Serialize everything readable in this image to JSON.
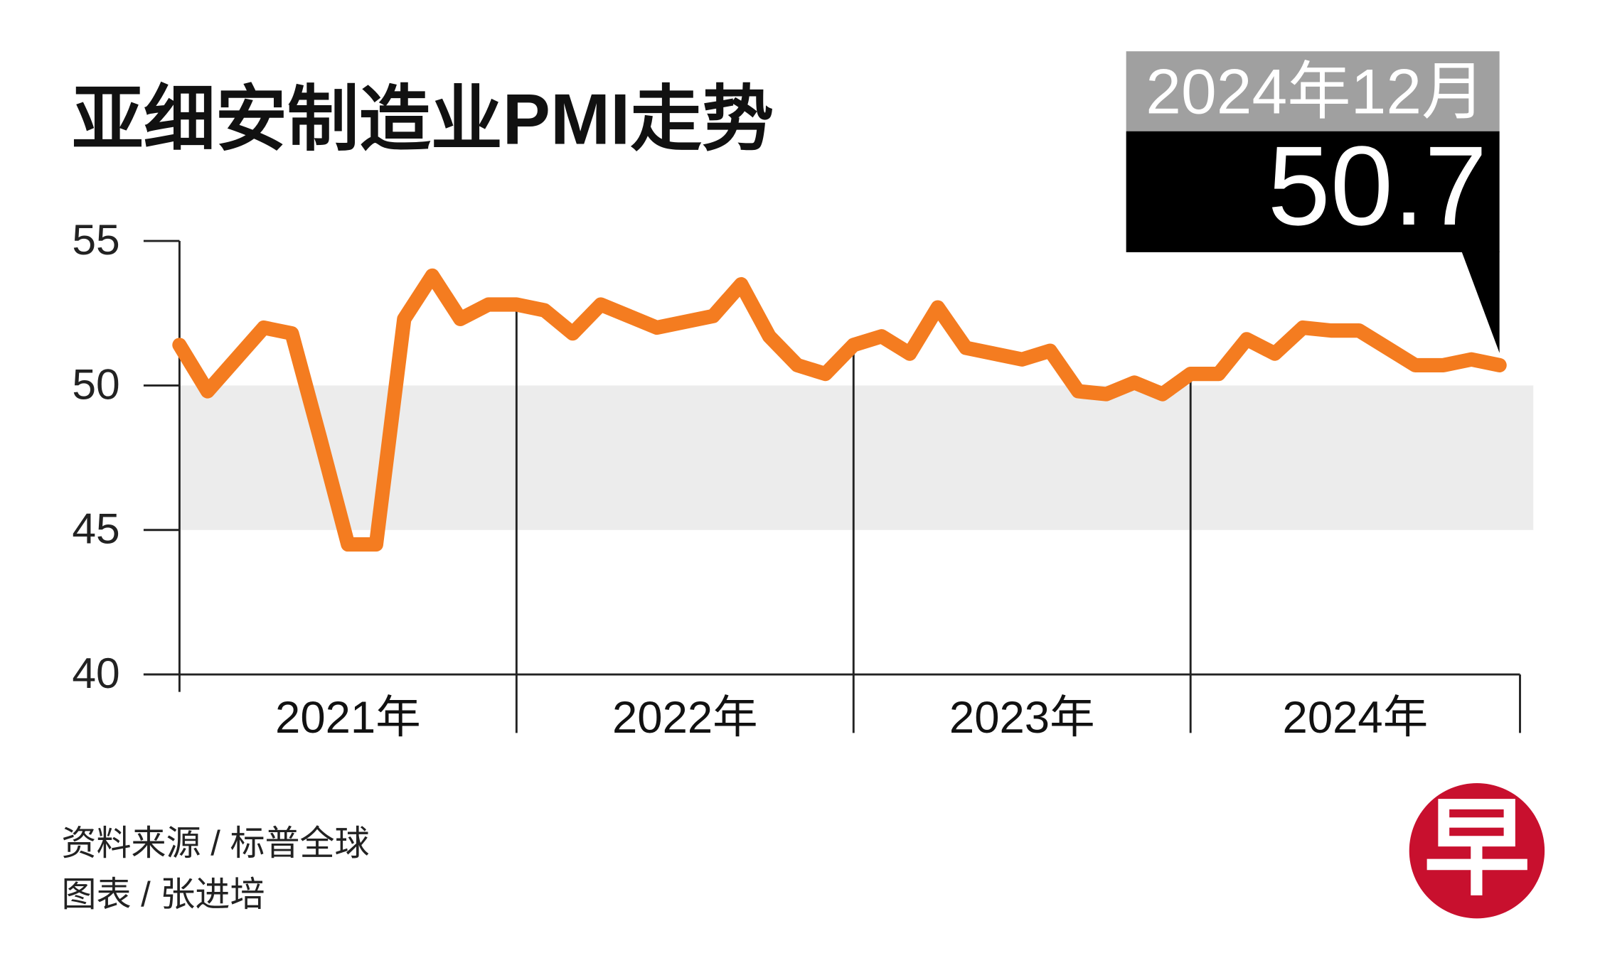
{
  "chart_data": {
    "type": "line",
    "title": "亚细安制造业PMI走势",
    "year_labels": [
      "2021年",
      "2022年",
      "2023年",
      "2024年"
    ],
    "series": [
      {
        "name": "PMI",
        "color": "#f47c20",
        "values": [
          51.4,
          49.8,
          50.9,
          52.0,
          51.8,
          48.2,
          44.5,
          44.5,
          52.3,
          53.8,
          52.3,
          52.8,
          52.8,
          52.6,
          51.8,
          52.8,
          52.4,
          52.0,
          52.2,
          52.4,
          53.5,
          51.7,
          50.7,
          50.4,
          51.4,
          51.7,
          51.1,
          52.7,
          51.3,
          51.1,
          50.9,
          51.2,
          49.8,
          49.7,
          50.1,
          49.7,
          50.4,
          50.4,
          51.6,
          51.1,
          52.0,
          51.9,
          51.9,
          51.3,
          50.7,
          50.7,
          50.9,
          50.7
        ]
      }
    ],
    "ylim": [
      40,
      55
    ],
    "yticks": [
      40,
      45,
      50,
      55
    ],
    "shade_range": [
      45,
      50
    ],
    "shade_color": "#ececec",
    "callout": {
      "label": "2024年12月",
      "value": 50.7
    },
    "source": "资料来源 / 标普全球",
    "credit": "图表 / 张进培",
    "logo": "早"
  }
}
